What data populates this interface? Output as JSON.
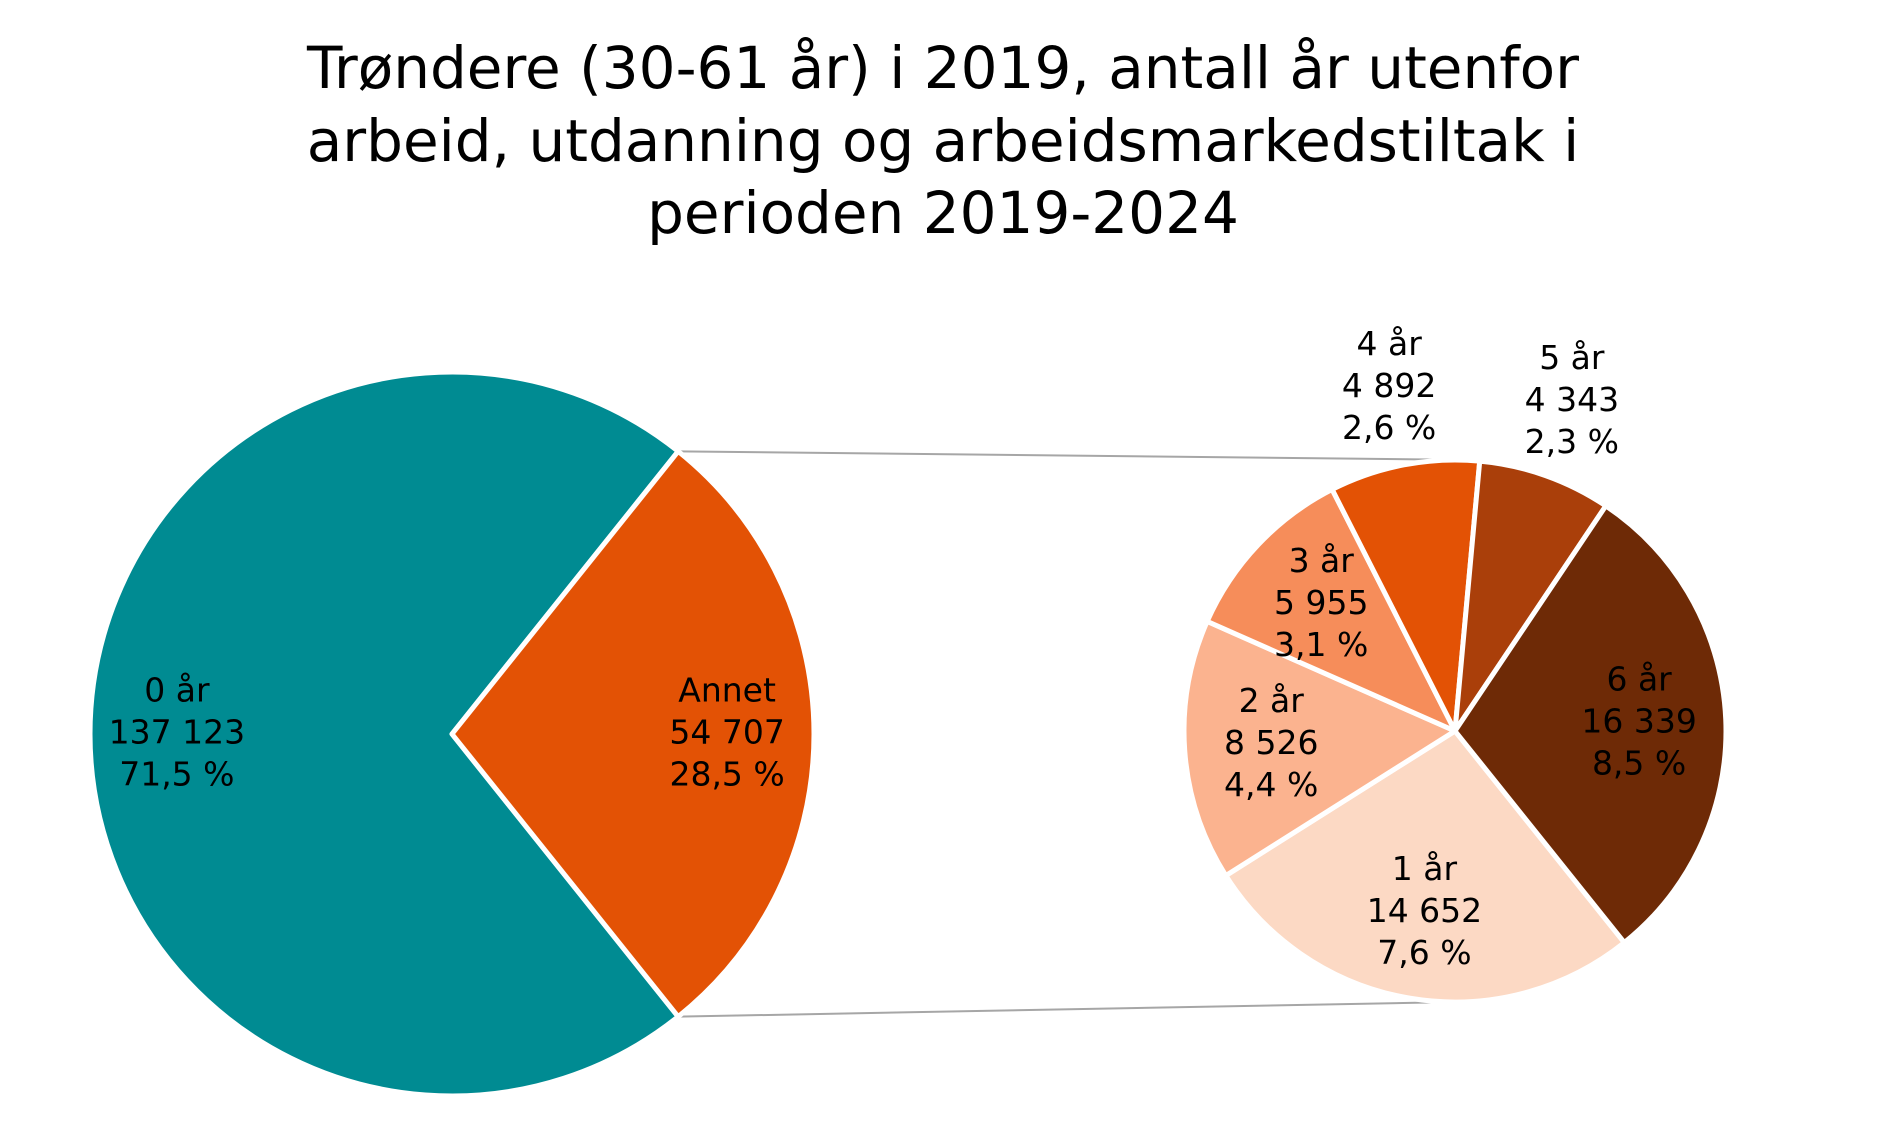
{
  "chart_data": {
    "type": "pie-of-pie",
    "title": [
      "Trøndere (30-61 år) i 2019, antall år utenfor",
      "arbeid, utdanning og arbeidsmarkedstiltak i",
      "perioden 2019-2024"
    ],
    "pies": [
      {
        "categories": [
          "0 år",
          "Annet"
        ],
        "values": [
          137123,
          54707
        ],
        "value_labels": [
          "137 123",
          "54 707"
        ],
        "percent_labels": [
          "71,5 %",
          "28,5 %"
        ],
        "colors": [
          "#008b92",
          "#e35205"
        ]
      },
      {
        "categories": [
          "1 år",
          "2 år",
          "3 år",
          "4 år",
          "5 år",
          "6 år"
        ],
        "values": [
          14652,
          8526,
          5955,
          4892,
          4343,
          16339
        ],
        "value_labels": [
          "14 652",
          "8 526",
          "5 955",
          "4 892",
          "4 343",
          "16 339"
        ],
        "percent_labels": [
          "7,6 %",
          "4,4 %",
          "3,1 %",
          "2,6 %",
          "2,3 %",
          "8,5 %"
        ],
        "colors": [
          "#fcd9c4",
          "#fbb38f",
          "#f68d5a",
          "#e35205",
          "#aa3f0a",
          "#6e2a06"
        ]
      }
    ]
  }
}
